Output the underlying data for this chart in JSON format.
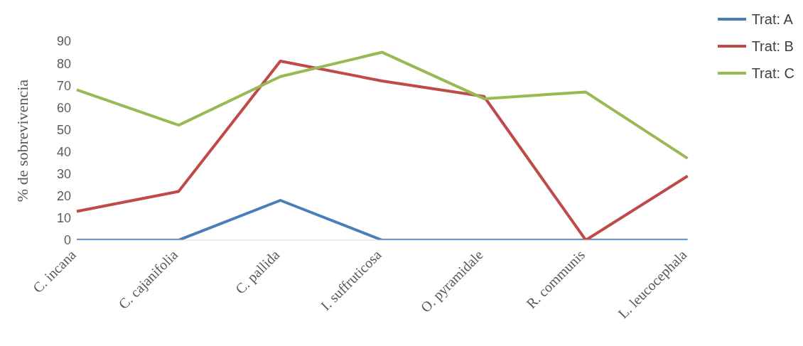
{
  "chart_data": {
    "type": "line",
    "ylabel": "% de sobrevivencia",
    "categories": [
      "C. incana",
      "C. cajanifolia",
      "C. pallida",
      "I. suffruticosa",
      "O. pyramidale",
      "R. communis",
      "L. leucocephala"
    ],
    "series": [
      {
        "name": "Trat: A",
        "color": "#4a7ebb",
        "values": [
          0,
          0,
          18,
          0,
          0,
          0,
          0
        ]
      },
      {
        "name": "Trat: B",
        "color": "#be4b48",
        "values": [
          13,
          22,
          81,
          72,
          65,
          0,
          29
        ]
      },
      {
        "name": "Trat: C",
        "color": "#98b954",
        "values": [
          68,
          52,
          74,
          85,
          64,
          67,
          37
        ]
      }
    ],
    "ylim": [
      0,
      90
    ],
    "yticks": [
      0,
      10,
      20,
      30,
      40,
      50,
      60,
      70,
      80,
      90
    ],
    "grid": false,
    "legend": "top right"
  }
}
